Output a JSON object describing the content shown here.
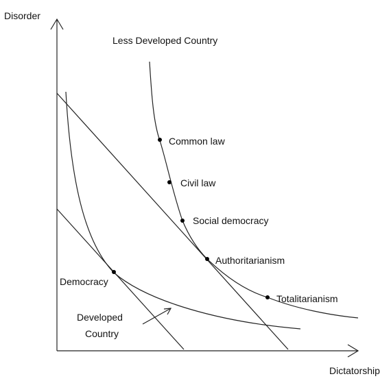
{
  "axes": {
    "y_label": "Disorder",
    "x_label": "Dictatorship"
  },
  "curves": {
    "less_developed_label": "Less Developed Country",
    "developed_label_line1": "Developed",
    "developed_label_line2": "Country"
  },
  "points": {
    "common_law": "Common law",
    "civil_law": "Civil law",
    "social_democracy": "Social democracy",
    "authoritarianism": "Authoritarianism",
    "totalitarianism": "Totalitarianism",
    "democracy": "Democracy"
  }
}
